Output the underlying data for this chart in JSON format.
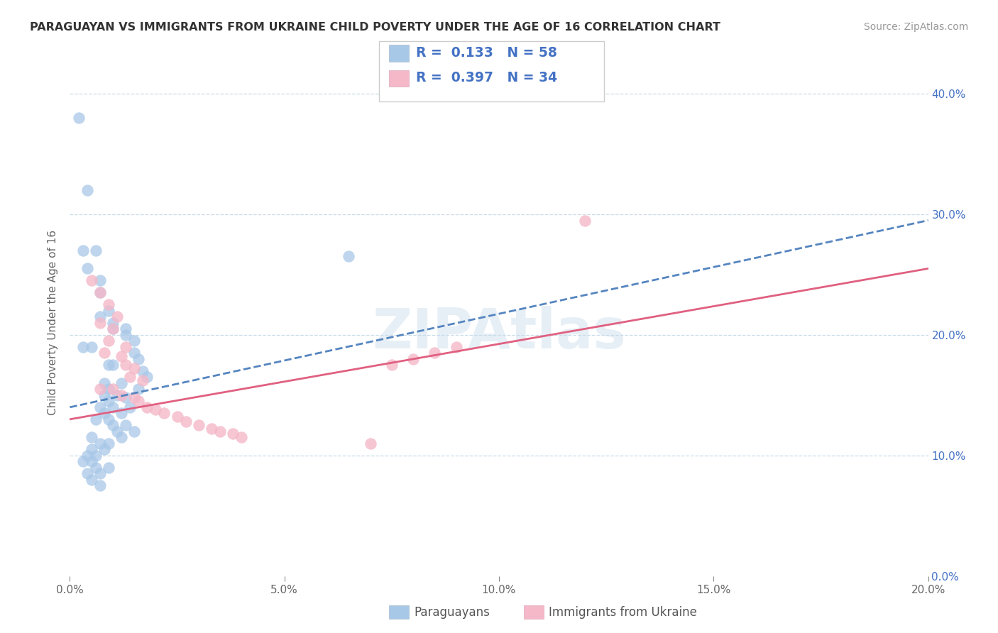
{
  "title": "PARAGUAYAN VS IMMIGRANTS FROM UKRAINE CHILD POVERTY UNDER THE AGE OF 16 CORRELATION CHART",
  "source": "Source: ZipAtlas.com",
  "ylabel_label": "Child Poverty Under the Age of 16",
  "xlim": [
    0.0,
    0.2
  ],
  "ylim": [
    0.0,
    0.42
  ],
  "blue_color": "#a8c8e8",
  "pink_color": "#f4b8c8",
  "legend_text_color": "#4472c4",
  "blue_scatter": [
    [
      0.002,
      0.38
    ],
    [
      0.004,
      0.32
    ],
    [
      0.003,
      0.27
    ],
    [
      0.006,
      0.27
    ],
    [
      0.065,
      0.265
    ],
    [
      0.004,
      0.255
    ],
    [
      0.007,
      0.245
    ],
    [
      0.007,
      0.235
    ],
    [
      0.009,
      0.22
    ],
    [
      0.007,
      0.215
    ],
    [
      0.01,
      0.21
    ],
    [
      0.01,
      0.205
    ],
    [
      0.013,
      0.205
    ],
    [
      0.013,
      0.2
    ],
    [
      0.015,
      0.195
    ],
    [
      0.003,
      0.19
    ],
    [
      0.005,
      0.19
    ],
    [
      0.015,
      0.185
    ],
    [
      0.016,
      0.18
    ],
    [
      0.009,
      0.175
    ],
    [
      0.01,
      0.175
    ],
    [
      0.017,
      0.17
    ],
    [
      0.018,
      0.165
    ],
    [
      0.008,
      0.16
    ],
    [
      0.012,
      0.16
    ],
    [
      0.016,
      0.155
    ],
    [
      0.009,
      0.155
    ],
    [
      0.008,
      0.15
    ],
    [
      0.011,
      0.15
    ],
    [
      0.013,
      0.148
    ],
    [
      0.009,
      0.145
    ],
    [
      0.007,
      0.14
    ],
    [
      0.01,
      0.14
    ],
    [
      0.014,
      0.14
    ],
    [
      0.008,
      0.135
    ],
    [
      0.012,
      0.135
    ],
    [
      0.006,
      0.13
    ],
    [
      0.009,
      0.13
    ],
    [
      0.01,
      0.125
    ],
    [
      0.013,
      0.125
    ],
    [
      0.011,
      0.12
    ],
    [
      0.015,
      0.12
    ],
    [
      0.005,
      0.115
    ],
    [
      0.012,
      0.115
    ],
    [
      0.007,
      0.11
    ],
    [
      0.009,
      0.11
    ],
    [
      0.005,
      0.105
    ],
    [
      0.008,
      0.105
    ],
    [
      0.004,
      0.1
    ],
    [
      0.006,
      0.1
    ],
    [
      0.003,
      0.095
    ],
    [
      0.005,
      0.095
    ],
    [
      0.006,
      0.09
    ],
    [
      0.009,
      0.09
    ],
    [
      0.004,
      0.085
    ],
    [
      0.007,
      0.085
    ],
    [
      0.005,
      0.08
    ],
    [
      0.007,
      0.075
    ]
  ],
  "pink_scatter": [
    [
      0.12,
      0.295
    ],
    [
      0.005,
      0.245
    ],
    [
      0.007,
      0.235
    ],
    [
      0.009,
      0.225
    ],
    [
      0.011,
      0.215
    ],
    [
      0.007,
      0.21
    ],
    [
      0.01,
      0.205
    ],
    [
      0.009,
      0.195
    ],
    [
      0.013,
      0.19
    ],
    [
      0.008,
      0.185
    ],
    [
      0.012,
      0.182
    ],
    [
      0.013,
      0.175
    ],
    [
      0.015,
      0.172
    ],
    [
      0.014,
      0.165
    ],
    [
      0.017,
      0.162
    ],
    [
      0.007,
      0.155
    ],
    [
      0.01,
      0.155
    ],
    [
      0.012,
      0.15
    ],
    [
      0.015,
      0.148
    ],
    [
      0.016,
      0.145
    ],
    [
      0.018,
      0.14
    ],
    [
      0.02,
      0.138
    ],
    [
      0.022,
      0.135
    ],
    [
      0.025,
      0.132
    ],
    [
      0.027,
      0.128
    ],
    [
      0.03,
      0.125
    ],
    [
      0.033,
      0.122
    ],
    [
      0.035,
      0.12
    ],
    [
      0.038,
      0.118
    ],
    [
      0.04,
      0.115
    ],
    [
      0.07,
      0.11
    ],
    [
      0.075,
      0.175
    ],
    [
      0.08,
      0.18
    ],
    [
      0.085,
      0.185
    ],
    [
      0.09,
      0.19
    ]
  ],
  "blue_line": [
    0.0,
    0.2,
    0.14,
    0.295
  ],
  "pink_line": [
    0.0,
    0.2,
    0.13,
    0.255
  ],
  "watermark": "ZIPAtlas",
  "background_color": "#ffffff",
  "grid_color": "#d8e8f0"
}
